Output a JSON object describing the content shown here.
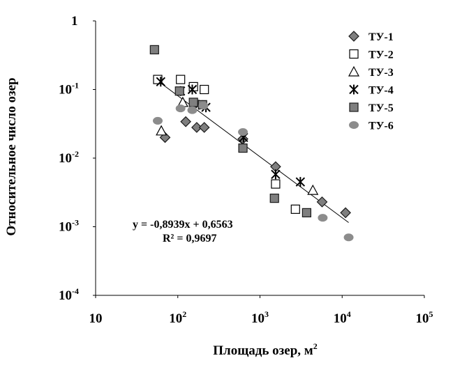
{
  "chart_data": {
    "type": "scatter",
    "title": "",
    "xlabel": "Площадь озер, м",
    "xlabel_sup": "2",
    "ylabel": "Относительное число озер",
    "xscale": "log",
    "yscale": "log",
    "xlim": [
      10,
      100000
    ],
    "ylim": [
      0.0001,
      1
    ],
    "grid": false,
    "legend_position": "top-right",
    "x_ticks": [
      {
        "base": "10",
        "exp": ""
      },
      {
        "base": "10",
        "exp": "2"
      },
      {
        "base": "10",
        "exp": "3"
      },
      {
        "base": "10",
        "exp": "4"
      },
      {
        "base": "10",
        "exp": "5"
      }
    ],
    "y_ticks": [
      {
        "base": "1",
        "exp": ""
      },
      {
        "base": "10",
        "exp": "-1"
      },
      {
        "base": "10",
        "exp": "-2"
      },
      {
        "base": "10",
        "exp": "-3"
      },
      {
        "base": "10",
        "exp": "-4"
      }
    ],
    "series": [
      {
        "name": "ТУ-1",
        "marker": "diamond",
        "fill": "#7f7f7f",
        "stroke": "#1a1a1a",
        "x": [
          70,
          125,
          170,
          210,
          620,
          1550,
          5700,
          11000
        ],
        "y": [
          0.02,
          0.034,
          0.028,
          0.028,
          0.019,
          0.0075,
          0.0023,
          0.0016
        ]
      },
      {
        "name": "ТУ-2",
        "marker": "square-open",
        "fill": "#ffffff",
        "stroke": "#000000",
        "x": [
          57,
          108,
          155,
          210,
          1550,
          2700
        ],
        "y": [
          0.14,
          0.14,
          0.11,
          0.1,
          0.0042,
          0.0018
        ]
      },
      {
        "name": "ТУ-3",
        "marker": "triangle-open",
        "fill": "#ffffff",
        "stroke": "#000000",
        "x": [
          63,
          115,
          4400
        ],
        "y": [
          0.025,
          0.065,
          0.0034
        ]
      },
      {
        "name": "ТУ-4",
        "marker": "asterisk",
        "fill": "none",
        "stroke": "#000000",
        "x": [
          62,
          108,
          150,
          180,
          220,
          630,
          1550,
          3100
        ],
        "y": [
          0.13,
          0.095,
          0.1,
          0.06,
          0.055,
          0.02,
          0.0058,
          0.0045
        ]
      },
      {
        "name": "ТУ-5",
        "marker": "square",
        "fill": "#7f7f7f",
        "stroke": "#1a1a1a",
        "x": [
          52,
          105,
          155,
          200,
          620,
          1500,
          3700
        ],
        "y": [
          0.38,
          0.095,
          0.065,
          0.06,
          0.014,
          0.0026,
          0.0016
        ]
      },
      {
        "name": "ТУ-6",
        "marker": "circle",
        "fill": "#8c8c8c",
        "stroke": "#8c8c8c",
        "x": [
          57,
          108,
          150,
          205,
          620,
          5800,
          12000
        ],
        "y": [
          0.035,
          0.053,
          0.05,
          0.058,
          0.024,
          0.00135,
          0.0007
        ]
      }
    ],
    "trendline": {
      "x": [
        55,
        12000
      ],
      "y": [
        0.138,
        0.00115
      ]
    },
    "annotation_lines": [
      "y = -0,8939x + 0,6563",
      "R² = 0,9697"
    ]
  }
}
